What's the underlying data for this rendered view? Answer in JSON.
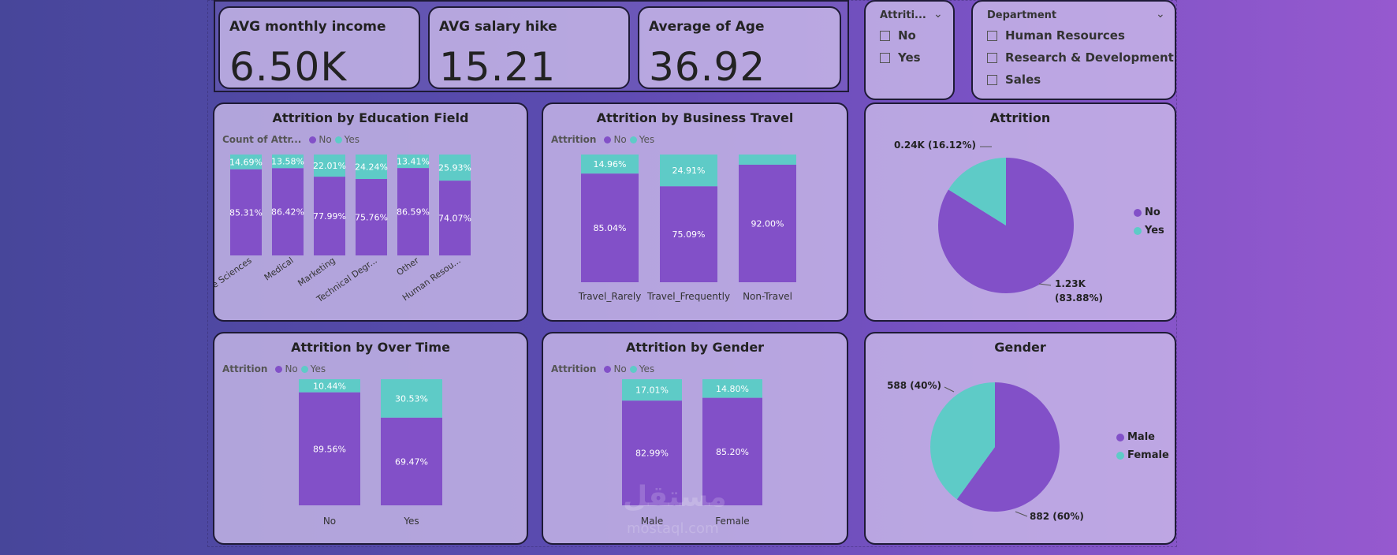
{
  "kpis": [
    {
      "title": "AVG monthly income",
      "value": "6.50K"
    },
    {
      "title": "AVG salary hike",
      "value": "15.21"
    },
    {
      "title": "Average of Age",
      "value": "36.92"
    }
  ],
  "slicers": {
    "attrition": {
      "title": "Attriti...",
      "options": [
        "No",
        "Yes"
      ]
    },
    "department": {
      "title": "Department",
      "options": [
        "Human Resources",
        "Research & Development",
        "Sales"
      ]
    }
  },
  "colors": {
    "no": "#8250c8",
    "yes": "#5ecbc7"
  },
  "icons": {
    "chevron": "chevron-down-icon",
    "checkbox": "checkbox-icon"
  },
  "watermark": {
    "text": "مستقل",
    "sub": "mostaql.com"
  },
  "chart_data": [
    {
      "id": "education",
      "type": "bar",
      "stacked": "100%",
      "title": "Attrition by Education Field",
      "legend_title": "Count of Attr...",
      "legend_labels": [
        "No",
        "Yes"
      ],
      "categories": [
        "Life Sciences",
        "Medical",
        "Marketing",
        "Technical Degr...",
        "Other",
        "Human Resou..."
      ],
      "series": [
        {
          "name": "No",
          "values": [
            85.31,
            86.42,
            77.99,
            75.76,
            86.59,
            74.07
          ],
          "labels": [
            "85.31%",
            "86.42%",
            "77.99%",
            "75.76%",
            "86.59%",
            "74.07%"
          ]
        },
        {
          "name": "Yes",
          "values": [
            14.69,
            13.58,
            22.01,
            24.24,
            13.41,
            25.93
          ],
          "labels": [
            "14.69%",
            "13.58%",
            "22.01%",
            "24.24%",
            "13.41%",
            "25.93%"
          ]
        }
      ],
      "ylim": [
        0,
        100
      ]
    },
    {
      "id": "travel",
      "type": "bar",
      "stacked": "100%",
      "title": "Attrition by Business Travel",
      "legend_title": "Attrition",
      "legend_labels": [
        "No",
        "Yes"
      ],
      "categories": [
        "Travel_Rarely",
        "Travel_Frequently",
        "Non-Travel"
      ],
      "series": [
        {
          "name": "No",
          "values": [
            85.04,
            75.09,
            92.0
          ],
          "labels": [
            "85.04%",
            "75.09%",
            "92.00%"
          ]
        },
        {
          "name": "Yes",
          "values": [
            14.96,
            24.91,
            8.0
          ],
          "labels": [
            "14.96%",
            "24.91%",
            ""
          ]
        }
      ],
      "ylim": [
        0,
        100
      ]
    },
    {
      "id": "overtime",
      "type": "bar",
      "stacked": "100%",
      "title": "Attrition by Over Time",
      "legend_title": "Attrition",
      "legend_labels": [
        "No",
        "Yes"
      ],
      "categories": [
        "No",
        "Yes"
      ],
      "series": [
        {
          "name": "No",
          "values": [
            89.56,
            69.47
          ],
          "labels": [
            "89.56%",
            "69.47%"
          ]
        },
        {
          "name": "Yes",
          "values": [
            10.44,
            30.53
          ],
          "labels": [
            "10.44%",
            "30.53%"
          ]
        }
      ],
      "ylim": [
        0,
        100
      ]
    },
    {
      "id": "gender_bar",
      "type": "bar",
      "stacked": "100%",
      "title": "Attrition by Gender",
      "legend_title": "Attrition",
      "legend_labels": [
        "No",
        "Yes"
      ],
      "categories": [
        "Male",
        "Female"
      ],
      "series": [
        {
          "name": "No",
          "values": [
            82.99,
            85.2
          ],
          "labels": [
            "82.99%",
            "85.20%"
          ]
        },
        {
          "name": "Yes",
          "values": [
            17.01,
            14.8
          ],
          "labels": [
            "17.01%",
            "14.80%"
          ]
        }
      ],
      "ylim": [
        0,
        100
      ]
    },
    {
      "id": "attrition_pie",
      "type": "pie",
      "title": "Attrition",
      "slices": [
        {
          "name": "No",
          "value": 1233,
          "pct": 83.88,
          "label_line1": "1.23K",
          "label_line2": "(83.88%)"
        },
        {
          "name": "Yes",
          "value": 237,
          "pct": 16.12,
          "label_line1": "0.24K (16.12%)",
          "label_line2": ""
        }
      ],
      "legend": [
        "No",
        "Yes"
      ],
      "legend_position": "right"
    },
    {
      "id": "gender_pie",
      "type": "pie",
      "title": "Gender",
      "slices": [
        {
          "name": "Male",
          "value": 882,
          "pct": 60,
          "label_line1": "882 (60%)",
          "label_line2": ""
        },
        {
          "name": "Female",
          "value": 588,
          "pct": 40,
          "label_line1": "588 (40%)",
          "label_line2": ""
        }
      ],
      "legend": [
        "Male",
        "Female"
      ],
      "legend_position": "right"
    }
  ]
}
